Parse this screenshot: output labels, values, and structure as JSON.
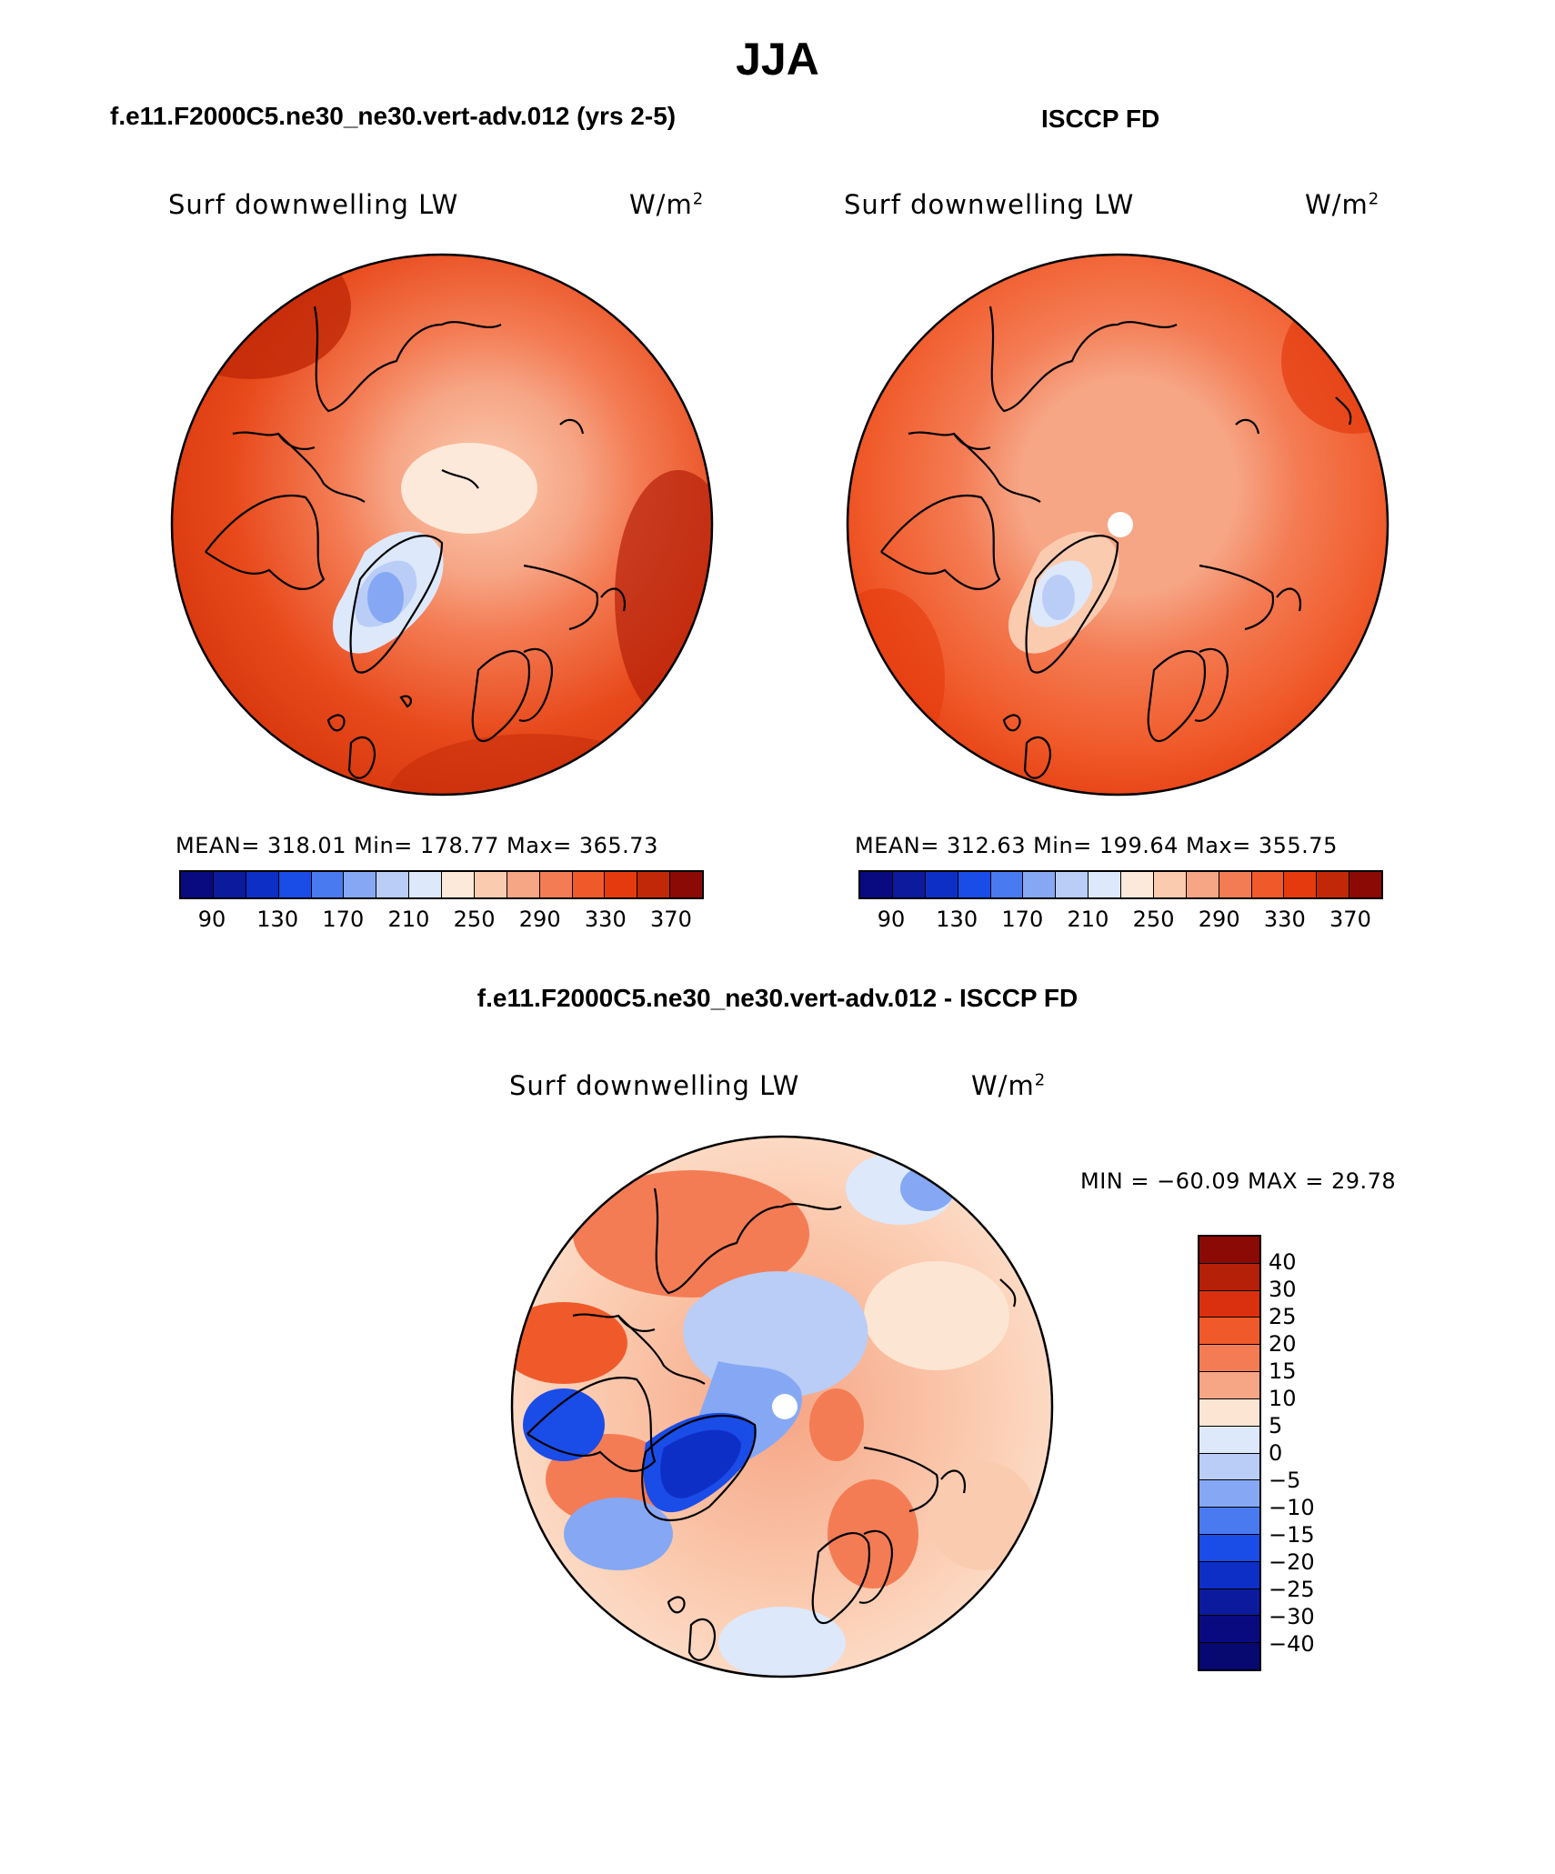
{
  "title": "JJA",
  "panels": [
    {
      "id": "model",
      "header": "f.e11.F2000C5.ne30_ne30.vert-adv.012 (yrs 2-5)",
      "field": "Surf downwelling LW",
      "units_base": "W/m",
      "units_exp": "2",
      "stats": "MEAN= 318.01   Min= 178.77   Max= 365.73"
    },
    {
      "id": "obs",
      "header": "ISCCP FD",
      "field": "Surf downwelling LW",
      "units_base": "W/m",
      "units_exp": "2",
      "stats": "MEAN= 312.63   Min= 199.64   Max= 355.75"
    }
  ],
  "diff_panel": {
    "header": "f.e11.F2000C5.ne30_ne30.vert-adv.012 - ISCCP FD",
    "field": "Surf downwelling LW",
    "units_base": "W/m",
    "units_exp": "2",
    "minmax": "MIN = −60.09 MAX =   29.78"
  },
  "colorbar_abs": {
    "colors": [
      "#0a0a80",
      "#0c1a9e",
      "#0e2fc6",
      "#1a4ce8",
      "#4a7aef",
      "#86a8f4",
      "#b9cdf7",
      "#dde8fb",
      "#fde9d9",
      "#fbcbb0",
      "#f6a585",
      "#f47c54",
      "#f05a2a",
      "#e43a0e",
      "#c02808",
      "#8b0a06"
    ],
    "tick_labels": [
      "90",
      "130",
      "170",
      "210",
      "250",
      "290",
      "330",
      "370"
    ]
  },
  "colorbar_diff": {
    "colors": [
      "#8b0a06",
      "#b52008",
      "#da3010",
      "#f05a2a",
      "#f47c54",
      "#f6a585",
      "#fde5d3",
      "#dde8fb",
      "#b9cdf7",
      "#86a8f4",
      "#4a7aef",
      "#1a4ce8",
      "#0e2fc6",
      "#0c1a9e",
      "#0a0a80",
      "#070870"
    ],
    "tick_labels": [
      "40",
      "30",
      "25",
      "20",
      "15",
      "10",
      "5",
      "0",
      "−5",
      "−10",
      "−15",
      "−20",
      "−25",
      "−30",
      "−40"
    ]
  }
}
